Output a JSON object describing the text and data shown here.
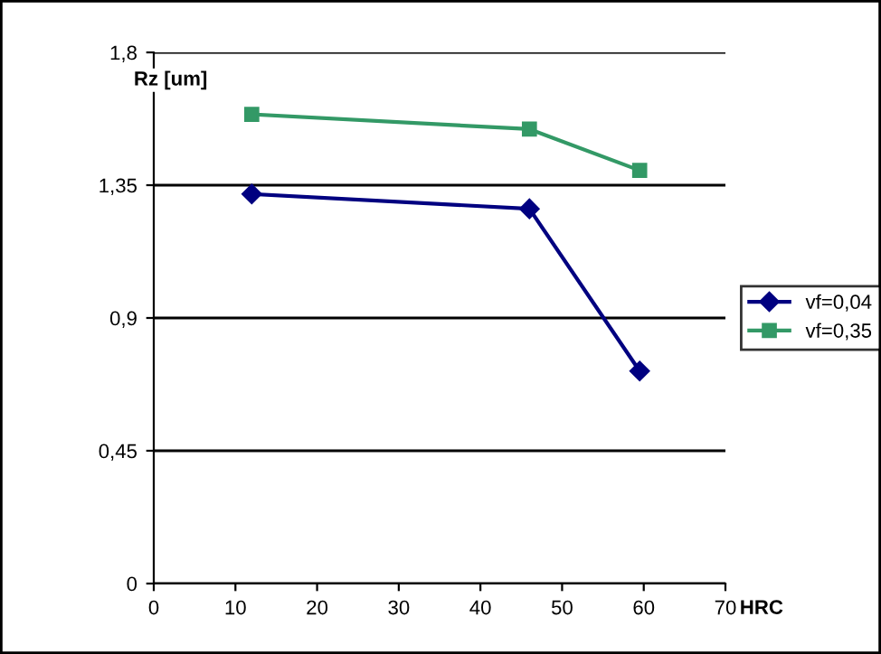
{
  "chart_data": {
    "type": "line",
    "xlabel": "HRC",
    "ylabel": "Rz [um]",
    "xlim": [
      0,
      70
    ],
    "xticks": [
      0,
      10,
      20,
      30,
      40,
      50,
      60,
      70
    ],
    "ylim": [
      0,
      1.8
    ],
    "yticks": [
      0,
      {
        "value": 0.45,
        "label": "0,45"
      },
      {
        "value": 0.9,
        "label": "0,9"
      },
      {
        "value": 1.35,
        "label": "1,35"
      },
      {
        "value": 1.8,
        "label": "1,8"
      }
    ],
    "grid": "y",
    "legend": "right",
    "series": [
      {
        "name": "vf=0,04",
        "color": "#000080",
        "marker": "diamond",
        "x": [
          12,
          46,
          59.5
        ],
        "values": [
          1.32,
          1.27,
          0.72
        ]
      },
      {
        "name": "vf=0,35",
        "color": "#339966",
        "marker": "square",
        "x": [
          12,
          46,
          59.5
        ],
        "values": [
          1.59,
          1.54,
          1.4
        ]
      }
    ]
  }
}
